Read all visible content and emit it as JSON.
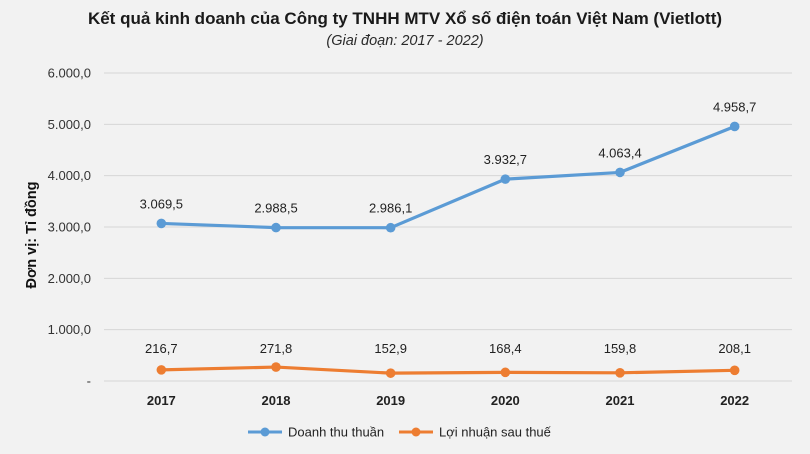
{
  "chart_data": {
    "type": "line",
    "title": "Kết quả kinh doanh của Công ty TNHH MTV Xổ số điện toán Việt Nam (Vietlott)",
    "subtitle": "(Giai đoạn: 2017 - 2022)",
    "ylabel": "Đơn vị: Tỉ đồng",
    "xlabel": "",
    "categories": [
      "2017",
      "2018",
      "2019",
      "2020",
      "2021",
      "2022"
    ],
    "ylim": [
      0,
      6000
    ],
    "yticks": [
      0,
      1000,
      2000,
      3000,
      4000,
      5000,
      6000
    ],
    "ytick_labels": [
      "-",
      "1.000,0",
      "2.000,0",
      "3.000,0",
      "4.000,0",
      "5.000,0",
      "6.000,0"
    ],
    "grid": true,
    "legend_position": "bottom",
    "series": [
      {
        "name": "Doanh thu thuần",
        "color": "#5b9bd5",
        "values": [
          3069.5,
          2988.5,
          2986.1,
          3932.7,
          4063.4,
          4958.7
        ],
        "labels": [
          "3.069,5",
          "2.988,5",
          "2.986,1",
          "3.932,7",
          "4.063,4",
          "4.958,7"
        ]
      },
      {
        "name": "Lợi nhuận sau thuế",
        "color": "#ed7d31",
        "values": [
          216.7,
          271.8,
          152.9,
          168.4,
          159.8,
          208.1
        ],
        "labels": [
          "216,7",
          "271,8",
          "152,9",
          "168,4",
          "159,8",
          "208,1"
        ]
      }
    ]
  }
}
